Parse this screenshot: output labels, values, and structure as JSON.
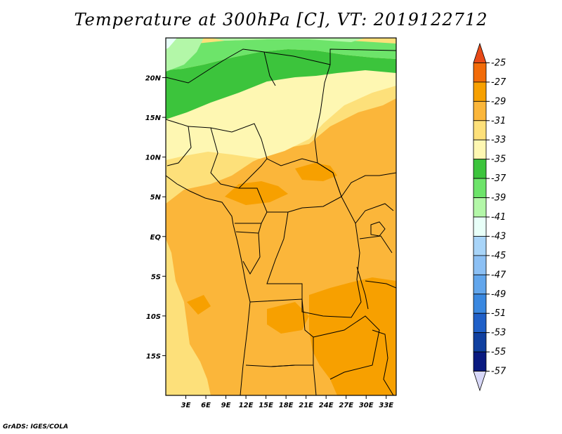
{
  "title": "Temperature at 300hPa [C], VT: 2019122712",
  "credit": "GrADS: IGES/COLA",
  "map": {
    "lon_range": [
      0,
      34.5
    ],
    "lat_range": [
      -20,
      25
    ],
    "lon_ticks": [
      {
        "value": 3,
        "label": "3E"
      },
      {
        "value": 6,
        "label": "6E"
      },
      {
        "value": 9,
        "label": "9E"
      },
      {
        "value": 12,
        "label": "12E"
      },
      {
        "value": 15,
        "label": "15E"
      },
      {
        "value": 18,
        "label": "18E"
      },
      {
        "value": 21,
        "label": "21E"
      },
      {
        "value": 24,
        "label": "24E"
      },
      {
        "value": 27,
        "label": "27E"
      },
      {
        "value": 30,
        "label": "30E"
      },
      {
        "value": 33,
        "label": "33E"
      }
    ],
    "lat_ticks": [
      {
        "value": 20,
        "label": "20N"
      },
      {
        "value": 15,
        "label": "15N"
      },
      {
        "value": 10,
        "label": "10N"
      },
      {
        "value": 5,
        "label": "5N"
      },
      {
        "value": 0,
        "label": "EQ"
      },
      {
        "value": -5,
        "label": "5S"
      },
      {
        "value": -10,
        "label": "10S"
      },
      {
        "value": -15,
        "label": "15S"
      }
    ]
  },
  "colorbar": {
    "labels": [
      "-25",
      "-27",
      "-29",
      "-31",
      "-33",
      "-35",
      "-37",
      "-39",
      "-41",
      "-43",
      "-45",
      "-47",
      "-49",
      "-51",
      "-53",
      "-55",
      "-57"
    ],
    "colors": [
      "#e84a18",
      "#f26b08",
      "#f7a000",
      "#fbb63a",
      "#fde07a",
      "#fef7b2",
      "#3cc43c",
      "#6de46a",
      "#b3f7a8",
      "#e8fff8",
      "#a8d4f8",
      "#8cc0f4",
      "#62a6ec",
      "#3a88e0",
      "#2060c8",
      "#1040a0",
      "#0a1a80",
      "#d8d8f8"
    ]
  },
  "field_colors": {
    "c25": "#f7a000",
    "c27": "#fbb63a",
    "c29": "#fde07a",
    "c31": "#fef7b2",
    "c33": "#3cc43c",
    "c35": "#6de46a",
    "c37": "#b3f7a8",
    "c39": "#e8fff8"
  }
}
